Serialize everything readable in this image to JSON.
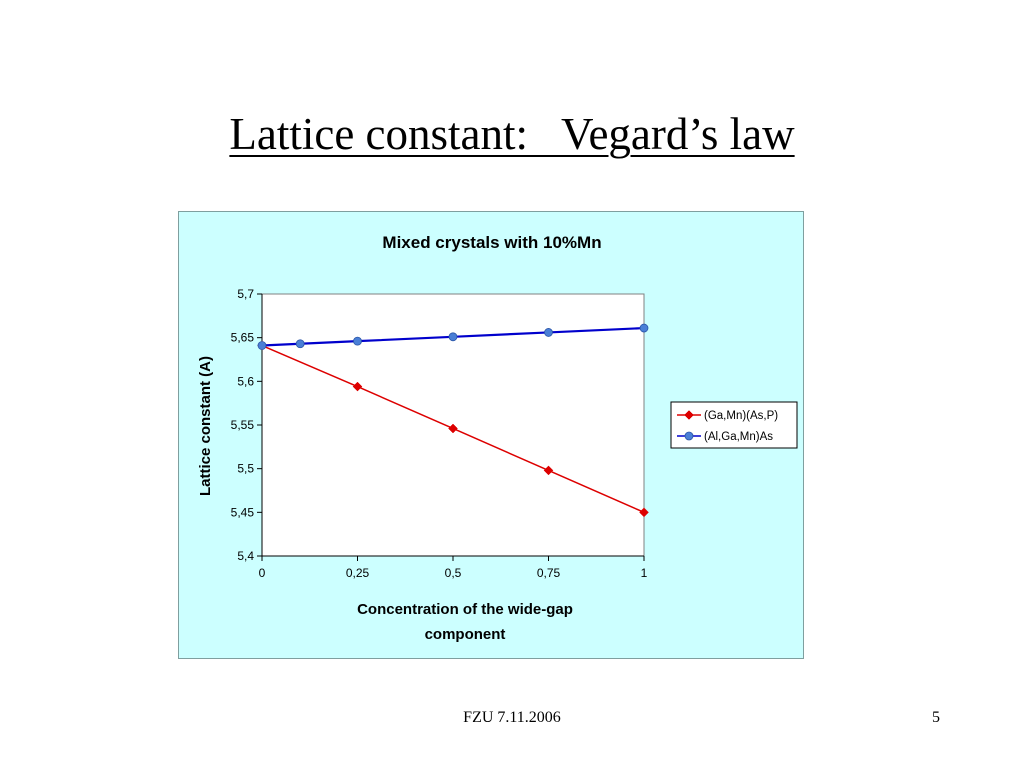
{
  "slide": {
    "title": "Lattice constant:   Vegard’s law",
    "footer": "FZU 7.11.2006",
    "page_number": "5"
  },
  "chart_data": {
    "type": "line",
    "title": "Mixed crystals with 10%Mn",
    "xlabel_lines": [
      "Concentration of the wide-gap",
      "component"
    ],
    "ylabel": "Lattice constant (A)",
    "xlim": [
      0,
      1
    ],
    "ylim": [
      5.4,
      5.7
    ],
    "x_ticks": [
      0,
      0.25,
      0.5,
      0.75,
      1
    ],
    "x_tick_labels": [
      "0",
      "0,25",
      "0,5",
      "0,75",
      "1"
    ],
    "y_ticks": [
      5.4,
      5.45,
      5.5,
      5.55,
      5.6,
      5.65,
      5.7
    ],
    "y_tick_labels": [
      "5,4",
      "5,45",
      "5,5",
      "5,55",
      "5,6",
      "5,65",
      "5,7"
    ],
    "grid": false,
    "legend_position": "right",
    "series": [
      {
        "name": "(Ga,Mn)(As,P)",
        "color": "#dd0000",
        "marker": "diamond",
        "x": [
          0,
          0.25,
          0.5,
          0.75,
          1
        ],
        "y": [
          5.641,
          5.594,
          5.546,
          5.498,
          5.45
        ]
      },
      {
        "name": "(Al,Ga,Mn)As",
        "color": "#0000cc",
        "marker_color": "#4a7fd6",
        "marker": "circle",
        "x": [
          0,
          0.1,
          0.25,
          0.5,
          0.75,
          1
        ],
        "y": [
          5.641,
          5.643,
          5.646,
          5.651,
          5.656,
          5.661
        ]
      }
    ]
  }
}
